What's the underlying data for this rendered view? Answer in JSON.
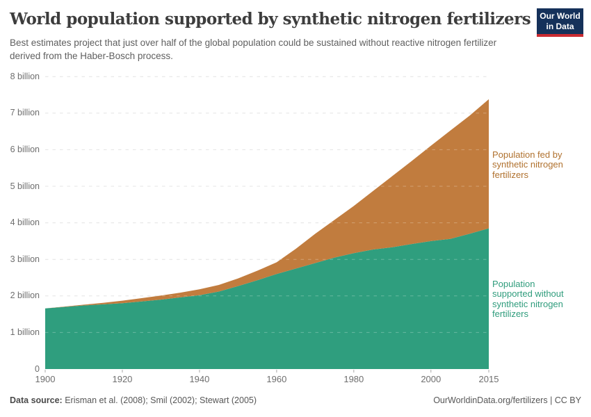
{
  "header": {
    "title": "World population supported by synthetic nitrogen fertilizers",
    "subtitle": "Best estimates project that just over half of the global population could be sustained without reactive nitrogen fertilizer derived from the Haber-Bosch process.",
    "logo": {
      "line1": "Our World",
      "line2": "in Data",
      "bg_color": "#15315a",
      "accent_color": "#ca2b31"
    }
  },
  "chart_data": {
    "type": "area",
    "stacked": true,
    "title": "World population supported by synthetic nitrogen fertilizers",
    "xlabel": "",
    "ylabel": "",
    "xlim": [
      1900,
      2015
    ],
    "ylim": [
      0,
      8
    ],
    "grid": "dashed-horizontal",
    "legend_position": "inline-right-annotations",
    "x": [
      1900,
      1905,
      1910,
      1915,
      1920,
      1925,
      1930,
      1935,
      1940,
      1945,
      1950,
      1955,
      1960,
      1965,
      1970,
      1975,
      1980,
      1985,
      1990,
      1995,
      2000,
      2005,
      2010,
      2015
    ],
    "series": [
      {
        "name": "Population supported without synthetic nitrogen fertilizers",
        "color": "#2f9e7e",
        "values": [
          1.66,
          1.7,
          1.74,
          1.77,
          1.8,
          1.85,
          1.9,
          1.96,
          2.02,
          2.12,
          2.27,
          2.43,
          2.6,
          2.75,
          2.9,
          3.05,
          3.17,
          3.27,
          3.33,
          3.42,
          3.5,
          3.56,
          3.7,
          3.85
        ]
      },
      {
        "name": "Population fed by synthetic nitrogen fertilizers",
        "color": "#c17c3e",
        "values": [
          0,
          0.01,
          0.02,
          0.04,
          0.07,
          0.09,
          0.11,
          0.13,
          0.16,
          0.18,
          0.21,
          0.26,
          0.32,
          0.54,
          0.8,
          1.03,
          1.29,
          1.6,
          1.95,
          2.27,
          2.61,
          2.96,
          3.23,
          3.53
        ]
      }
    ],
    "totals_world_population": [
      1.66,
      1.71,
      1.76,
      1.81,
      1.87,
      1.94,
      2.01,
      2.09,
      2.18,
      2.3,
      2.48,
      2.69,
      2.92,
      3.29,
      3.7,
      4.08,
      4.46,
      4.87,
      5.28,
      5.69,
      6.11,
      6.52,
      6.93,
      7.38
    ],
    "x_tick_values": [
      1900,
      1920,
      1940,
      1960,
      1980,
      2000,
      2015
    ],
    "x_tick_labels": [
      "1900",
      "1920",
      "1940",
      "1960",
      "1980",
      "2000",
      "2015"
    ],
    "y_tick_values": [
      0,
      1,
      2,
      3,
      4,
      5,
      6,
      7,
      8
    ],
    "y_tick_labels": [
      "0",
      "1 billion",
      "2 billion",
      "3 billion",
      "4 billion",
      "5 billion",
      "6 billion",
      "7 billion",
      "8 billion"
    ]
  },
  "annotations": {
    "fed_label": {
      "lines": [
        "Population fed by",
        "synthetic nitrogen",
        "fertilizers"
      ],
      "color": "#b0712e"
    },
    "without_label": {
      "lines": [
        "Population",
        "supported without",
        "synthetic nitrogen",
        "fertilizers"
      ],
      "color": "#2f9c7c"
    }
  },
  "footer": {
    "source_label": "Data source:",
    "source_text": "Erisman et al. (2008); Smil (2002); Stewart (2005)",
    "attribution": "OurWorldinData.org/fertilizers | CC BY"
  }
}
